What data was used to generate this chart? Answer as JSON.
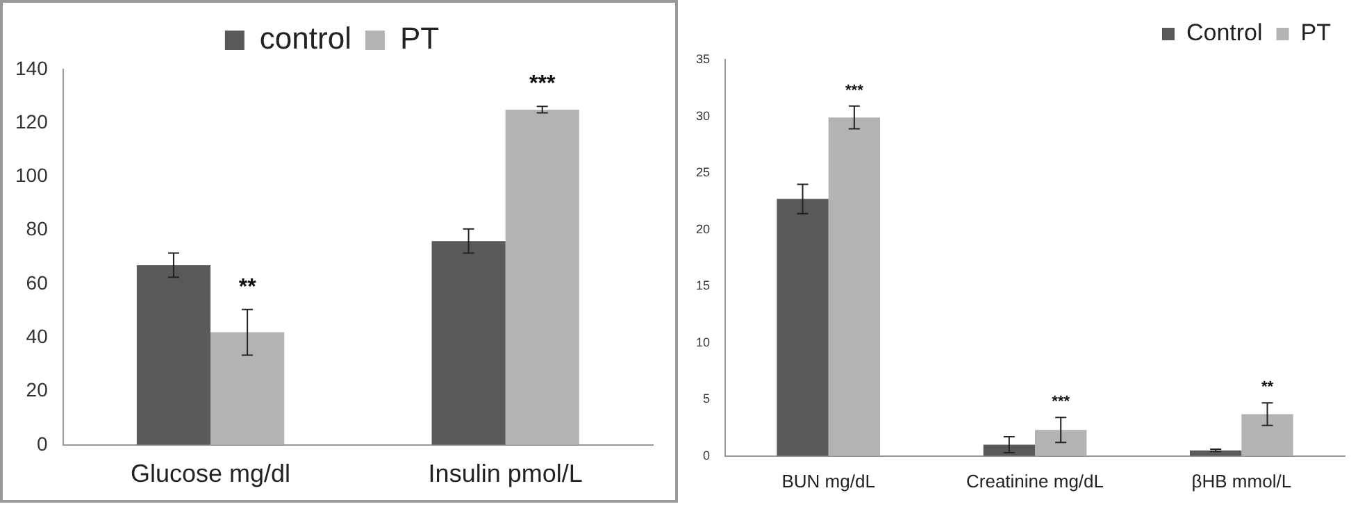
{
  "chart_data": [
    {
      "type": "bar",
      "categories": [
        "Glucose mg/dl",
        "Insulin pmol/L"
      ],
      "series": [
        {
          "name": "control",
          "color": "#595959",
          "values": [
            67,
            76
          ],
          "errors": [
            4.5,
            4.5
          ]
        },
        {
          "name": "PT",
          "color": "#b3b3b3",
          "values": [
            42,
            125
          ],
          "errors": [
            8.5,
            1.2
          ]
        }
      ],
      "ylim": [
        0,
        140
      ],
      "yticks": [
        0,
        20,
        40,
        60,
        80,
        100,
        120,
        140
      ],
      "grid": false,
      "legend": "top",
      "annotations": [
        {
          "text": "**",
          "x": "Glucose mg/dl",
          "y": 42
        },
        {
          "text": "***",
          "x": "Insulin pmol/L",
          "y": 125
        }
      ]
    },
    {
      "type": "bar",
      "categories": [
        "BUN mg/dL",
        "Creatinine mg/dL",
        "βHB mmol/L"
      ],
      "series": [
        {
          "name": "Control",
          "color": "#595959",
          "values": [
            22.7,
            1.0,
            0.5
          ],
          "errors": [
            1.3,
            0.7,
            0.1
          ]
        },
        {
          "name": "PT",
          "color": "#b3b3b3",
          "values": [
            29.9,
            2.3,
            3.7
          ],
          "errors": [
            1.0,
            1.1,
            1.0
          ]
        }
      ],
      "ylim": [
        0,
        35
      ],
      "yticks": [
        0,
        5,
        10,
        15,
        20,
        25,
        30,
        35
      ],
      "grid": false,
      "legend": "top right",
      "annotations": [
        {
          "text": "***",
          "x": "BUN mg/dL",
          "y": 29.9
        },
        {
          "text": "***",
          "x": "Creatinine mg/dL",
          "y": 2.3
        },
        {
          "text": "**",
          "x": "βHB mmol/L",
          "y": 3.7
        }
      ]
    }
  ]
}
